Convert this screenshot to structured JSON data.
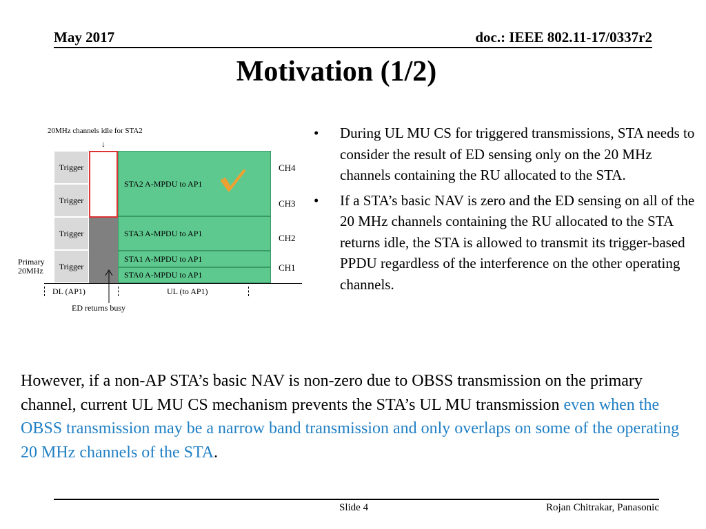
{
  "header": {
    "date": "May 2017",
    "doc": "doc.: IEEE 802.11-17/0337r2"
  },
  "title": "Motivation (1/2)",
  "diagram": {
    "top_label": "20MHz channels  idle for STA2",
    "triggers": [
      "Trigger",
      "Trigger",
      "Trigger",
      "Trigger"
    ],
    "blocks": {
      "sta2": "STA2 A-MPDU to AP1",
      "sta3": "STA3 A-MPDU to AP1",
      "sta1": "STA1 A-MPDU to AP1",
      "sta0": "STA0 A-MPDU to AP1"
    },
    "channels": [
      "CH4",
      "CH3",
      "CH2",
      "CH1"
    ],
    "primary_label_1": "Primary",
    "primary_label_2": "20MHz",
    "dl_label": "DL  (AP1)",
    "ul_label": "UL  (to AP1)",
    "ed_label": "ED returns busy",
    "check_color": "#f0a030"
  },
  "bullets": [
    "During UL MU CS for triggered transmissions, STA needs to consider the result of ED sensing only on the 20 MHz channels containing the RU allocated to the STA.",
    "If a STA’s basic NAV is zero and the ED sensing on all of the 20 MHz channels containing the RU allocated to the STA returns idle, the STA is allowed to transmit its trigger-based PPDU regardless of the interference on the other operating channels."
  ],
  "bullet_char": "•",
  "paragraph": {
    "black": "However, if a non-AP STA’s basic NAV is non-zero due to OBSS transmission on the primary channel, current UL MU CS mechanism prevents the STA’s UL MU transmission ",
    "blue": "even when the OBSS transmission may be a narrow band transmission and only overlaps on some of the operating 20 MHz channels of the STA",
    "end": "."
  },
  "footer": {
    "slide": "Slide 4",
    "author": "Rojan Chitrakar, Panasonic"
  }
}
